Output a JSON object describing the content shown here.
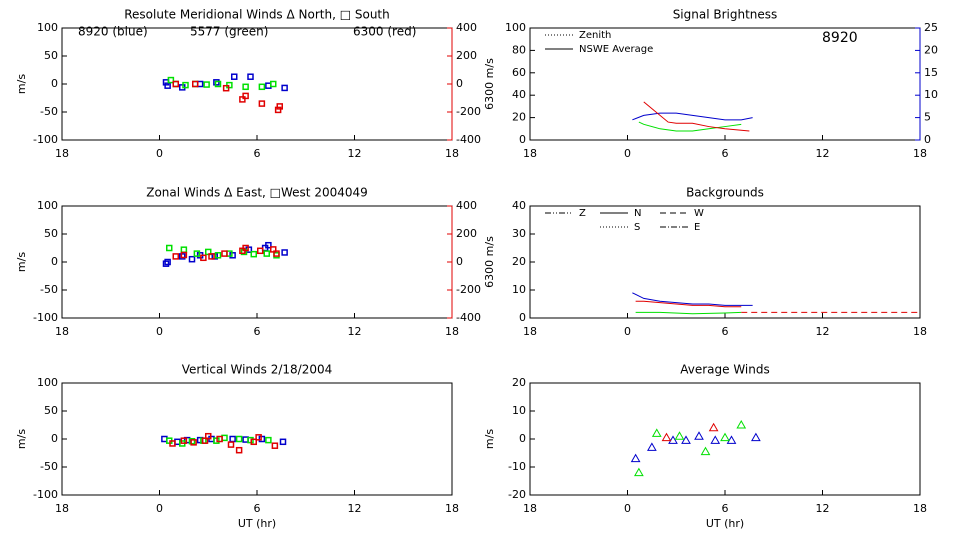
{
  "chart_data": [
    {
      "type": "scatter",
      "title": "Resolute Meridional Winds Δ North, □ South",
      "xlim": [
        -6,
        18
      ],
      "xticks": [
        {
          "value": -6,
          "label": "18"
        },
        0,
        6,
        12,
        18
      ],
      "ylim": [
        -100,
        100
      ],
      "yticks": [
        -100,
        -50,
        0,
        50,
        100
      ],
      "ylabel": "m/s",
      "y2lim": [
        -400,
        400
      ],
      "y2ticks": [
        -400,
        -200,
        0,
        200,
        400
      ],
      "y2label": "6300 m/s",
      "y2color": "#e00000",
      "annotations": [
        {
          "text": "8920 (blue)",
          "color": "#0000cc"
        },
        {
          "text": "5577 (green)",
          "color": "#00e000"
        },
        {
          "text": "6300 (red)",
          "color": "#e00000"
        }
      ],
      "series": [
        {
          "color": "#0000cc",
          "marker": "square",
          "x": [
            0.4,
            0.5,
            1.4,
            2.5,
            3.5,
            4.6,
            5.6,
            6.7,
            7.7
          ],
          "values": [
            3,
            -3,
            -6,
            0,
            3,
            13,
            13,
            -3,
            -7
          ]
        },
        {
          "color": "#00e000",
          "marker": "square",
          "x": [
            0.7,
            1.0,
            1.6,
            2.2,
            2.9,
            3.6,
            4.3,
            5.3,
            6.3,
            7.0
          ],
          "values": [
            7,
            0,
            -2,
            0,
            -1,
            0,
            -2,
            -5,
            -5,
            0
          ]
        },
        {
          "color": "#e00000",
          "marker": "square",
          "axis": "y2",
          "x": [
            1.0,
            2.2,
            4.1,
            5.1,
            5.3,
            6.3,
            7.3,
            7.4
          ],
          "values": [
            0,
            0,
            -30,
            -110,
            -85,
            -140,
            -185,
            -160
          ]
        }
      ]
    },
    {
      "type": "line",
      "title": "Signal Brightness",
      "xlim": [
        -6,
        18
      ],
      "xticks": [
        {
          "value": -6,
          "label": "18"
        },
        0,
        6,
        12,
        18
      ],
      "ylim": [
        0,
        100
      ],
      "yticks": [
        0,
        20,
        40,
        60,
        80,
        100
      ],
      "y2lim": [
        0,
        25
      ],
      "y2ticks": [
        0,
        5,
        10,
        15,
        20,
        25
      ],
      "y2color": "#0000cc",
      "annotations": [
        {
          "text": "8920",
          "color": "#0000cc"
        }
      ],
      "legend": [
        {
          "label": "Zenith",
          "dash": "1,2"
        },
        {
          "label": "NSWE Average",
          "dash": "none"
        }
      ],
      "series": [
        {
          "color": "#0000cc",
          "axis": "y2",
          "dash": "none",
          "x": [
            0.3,
            1,
            2,
            3,
            4,
            5,
            6,
            7,
            7.7
          ],
          "values": [
            4.5,
            5.5,
            6,
            6,
            5.5,
            5,
            4.5,
            4.5,
            5
          ]
        },
        {
          "color": "#00e000",
          "dash": "none",
          "x": [
            0.7,
            1,
            2,
            3,
            4,
            5,
            6,
            7
          ],
          "values": [
            16,
            14,
            10,
            8,
            8,
            10,
            12,
            14
          ]
        },
        {
          "color": "#e00000",
          "dash": "none",
          "x": [
            1,
            1.5,
            2.5,
            3,
            4,
            5,
            6,
            7.5
          ],
          "values": [
            34,
            28,
            16,
            15,
            15,
            12,
            10,
            8
          ]
        }
      ]
    },
    {
      "type": "scatter",
      "title": "Zonal Winds Δ East, □West 2004049",
      "xlim": [
        -6,
        18
      ],
      "xticks": [
        {
          "value": -6,
          "label": "18"
        },
        0,
        6,
        12,
        18
      ],
      "ylim": [
        -100,
        100
      ],
      "yticks": [
        -100,
        -50,
        0,
        50,
        100
      ],
      "ylabel": "m/s",
      "y2lim": [
        -400,
        400
      ],
      "y2ticks": [
        -400,
        -200,
        0,
        200,
        400
      ],
      "y2label": "6300 m/s",
      "y2color": "#e00000",
      "series": [
        {
          "color": "#0000cc",
          "marker": "square",
          "x": [
            0.4,
            0.5,
            1.4,
            2.0,
            2.5,
            3.4,
            4.5,
            5.5,
            6.5,
            6.7,
            7.7
          ],
          "values": [
            -3,
            0,
            10,
            5,
            12,
            10,
            12,
            22,
            25,
            30,
            17
          ]
        },
        {
          "color": "#00e000",
          "marker": "square",
          "x": [
            0.6,
            1.5,
            2.3,
            3.0,
            3.6,
            4.3,
            5.2,
            5.8,
            6.6,
            7.2
          ],
          "values": [
            25,
            22,
            15,
            18,
            12,
            15,
            18,
            14,
            15,
            12
          ]
        },
        {
          "color": "#e00000",
          "marker": "square",
          "axis": "y2",
          "x": [
            1.0,
            1.5,
            2.7,
            3.2,
            4.0,
            5.1,
            5.3,
            6.2,
            7.0,
            7.2
          ],
          "values": [
            40,
            50,
            30,
            40,
            60,
            80,
            100,
            80,
            90,
            60
          ]
        }
      ]
    },
    {
      "type": "line",
      "title": "Backgrounds",
      "xlim": [
        -6,
        18
      ],
      "xticks": [
        {
          "value": -6,
          "label": "18"
        },
        0,
        6,
        12,
        18
      ],
      "ylim": [
        0,
        40
      ],
      "yticks": [
        0,
        10,
        20,
        30,
        40
      ],
      "legend": [
        {
          "label": "Z",
          "dash": "6,2,1,2,1,2"
        },
        {
          "label": "N",
          "dash": "none"
        },
        {
          "label": "W",
          "dash": "6,4"
        },
        {
          "label": "S",
          "dash": "1,2"
        },
        {
          "label": "E",
          "dash": "6,2,1,2"
        }
      ],
      "series": [
        {
          "color": "#0000cc",
          "dash": "none",
          "x": [
            0.3,
            1,
            2,
            3,
            4,
            5,
            6,
            7,
            7.7
          ],
          "values": [
            9,
            7,
            6,
            5.5,
            5,
            5,
            4.5,
            4.5,
            4.5
          ]
        },
        {
          "color": "#e00000",
          "dash": "none",
          "x": [
            0.5,
            1,
            2,
            3,
            4,
            5,
            6,
            7
          ],
          "values": [
            6,
            6,
            5.5,
            5,
            4.5,
            4.5,
            4,
            4
          ]
        },
        {
          "color": "#00e000",
          "dash": "none",
          "x": [
            0.5,
            2,
            4,
            6,
            7
          ],
          "values": [
            2,
            2,
            1.5,
            1.8,
            2
          ]
        },
        {
          "color": "#e00000",
          "dash": "6,4",
          "x": [
            7,
            18
          ],
          "values": [
            2,
            2
          ]
        }
      ]
    },
    {
      "type": "scatter",
      "title": "Vertical Winds 2/18/2004",
      "xlabel": "UT (hr)",
      "xlim": [
        -6,
        18
      ],
      "xticks": [
        {
          "value": -6,
          "label": "18"
        },
        0,
        6,
        12,
        18
      ],
      "ylim": [
        -100,
        100
      ],
      "yticks": [
        -100,
        -50,
        0,
        50,
        100
      ],
      "ylabel": "m/s",
      "series": [
        {
          "color": "#0000cc",
          "marker": "square",
          "x": [
            0.3,
            1.1,
            1.7,
            2.5,
            3.2,
            4.5,
            5.3,
            6.3,
            7.6
          ],
          "values": [
            0,
            -5,
            -2,
            -2,
            0,
            0,
            -1,
            0,
            -5
          ]
        },
        {
          "color": "#00e000",
          "marker": "square",
          "x": [
            0.6,
            1.4,
            2.0,
            2.7,
            3.5,
            4.0,
            4.9,
            5.6,
            6.7
          ],
          "values": [
            -3,
            -8,
            -4,
            -3,
            -3,
            2,
            0,
            -2,
            -2
          ]
        },
        {
          "color": "#e00000",
          "marker": "square",
          "x": [
            0.8,
            1.5,
            2.1,
            2.8,
            3.0,
            3.7,
            4.4,
            4.9,
            5.8,
            6.1,
            7.1
          ],
          "values": [
            -8,
            -3,
            -6,
            -3,
            5,
            0,
            -10,
            -20,
            -5,
            3,
            -12
          ]
        }
      ]
    },
    {
      "type": "scatter",
      "title": "Average Winds",
      "xlabel": "UT (hr)",
      "xlim": [
        -6,
        18
      ],
      "xticks": [
        {
          "value": -6,
          "label": "18"
        },
        0,
        6,
        12,
        18
      ],
      "ylim": [
        -20,
        20
      ],
      "yticks": [
        -20,
        -10,
        0,
        10,
        20
      ],
      "ylabel": "m/s",
      "series": [
        {
          "color": "#0000cc",
          "marker": "triangle",
          "x": [
            0.5,
            1.5,
            2.8,
            3.6,
            4.4,
            5.4,
            6.4,
            7.9
          ],
          "values": [
            -7,
            -3,
            -0.5,
            -0.5,
            1,
            -0.5,
            -0.5,
            0.5
          ]
        },
        {
          "color": "#00e000",
          "marker": "triangle",
          "x": [
            0.7,
            1.8,
            3.2,
            4.8,
            6.0,
            7.0
          ],
          "values": [
            -12,
            2,
            1,
            -4.5,
            0.5,
            5
          ]
        },
        {
          "color": "#e00000",
          "marker": "triangle",
          "x": [
            2.4,
            5.3
          ],
          "values": [
            0.5,
            4
          ]
        }
      ]
    }
  ]
}
